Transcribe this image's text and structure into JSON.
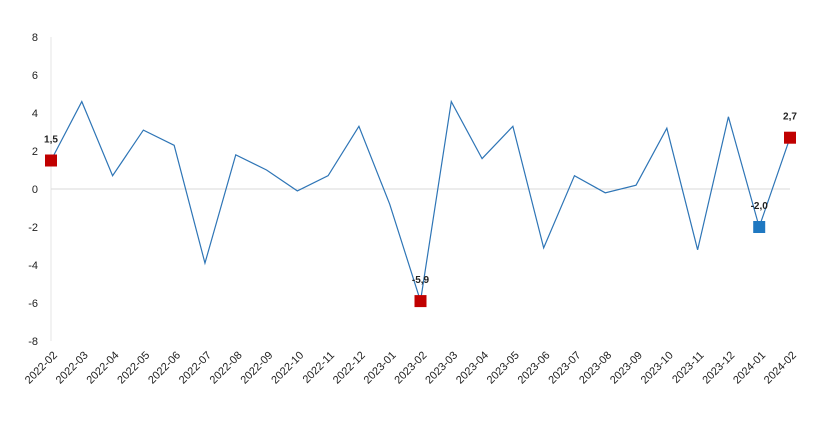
{
  "chart_data": {
    "type": "line",
    "categories": [
      "2022-02",
      "2022-03",
      "2022-04",
      "2022-05",
      "2022-06",
      "2022-07",
      "2022-08",
      "2022-09",
      "2022-10",
      "2022-11",
      "2022-12",
      "2023-01",
      "2023-02",
      "2023-03",
      "2023-04",
      "2023-05",
      "2023-06",
      "2023-07",
      "2023-08",
      "2023-09",
      "2023-10",
      "2023-11",
      "2023-12",
      "2024-01",
      "2024-02"
    ],
    "series": [
      {
        "color": "#2e75b6",
        "values": [
          1.5,
          4.6,
          0.7,
          3.1,
          2.3,
          -3.9,
          1.8,
          1.0,
          -0.1,
          0.7,
          3.3,
          -0.8,
          -5.9,
          4.6,
          1.6,
          3.3,
          -3.1,
          0.7,
          -0.2,
          0.2,
          3.2,
          -3.2,
          3.8,
          -2.0,
          2.7
        ],
        "value_labels": [
          "1,5",
          null,
          null,
          null,
          null,
          null,
          null,
          null,
          null,
          null,
          null,
          null,
          "-5,9",
          null,
          null,
          null,
          null,
          null,
          null,
          null,
          null,
          null,
          null,
          "-2,0",
          "2,7"
        ],
        "marker_colors": [
          "#c00000",
          null,
          null,
          null,
          null,
          null,
          null,
          null,
          null,
          null,
          null,
          null,
          "#c00000",
          null,
          null,
          null,
          null,
          null,
          null,
          null,
          null,
          null,
          null,
          "#1f78c1",
          "#c00000"
        ]
      }
    ],
    "ylim": [
      -8,
      8
    ],
    "yticks": [
      -8,
      -6,
      -4,
      -2,
      0,
      2,
      4,
      6,
      8
    ],
    "zero_line": true
  }
}
